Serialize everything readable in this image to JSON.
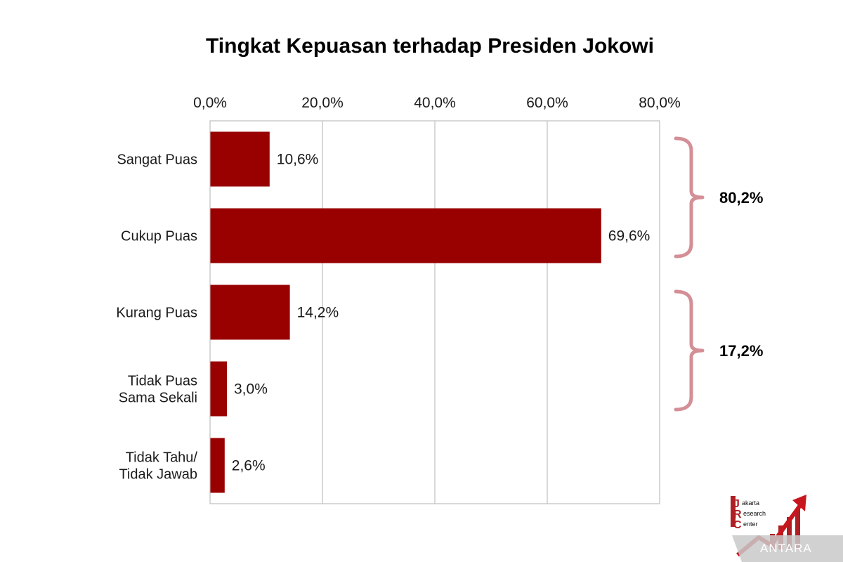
{
  "chart_data": {
    "type": "bar",
    "orientation": "horizontal",
    "title": "Tingkat Kepuasan terhadap Presiden Jokowi",
    "categories": [
      [
        "Sangat Puas"
      ],
      [
        "Cukup Puas"
      ],
      [
        "Kurang Puas"
      ],
      [
        "Tidak Puas",
        "Sama Sekali"
      ],
      [
        "Tidak Tahu/",
        "Tidak Jawab"
      ]
    ],
    "values": [
      10.6,
      69.6,
      14.2,
      3.0,
      2.6
    ],
    "data_labels": [
      "10,6%",
      "69,6%",
      "14,2%",
      "3,0%",
      "2,6%"
    ],
    "x_ticks": [
      "0,0%",
      "20,0%",
      "40,0%",
      "60,0%",
      "80,0%"
    ],
    "xlim": [
      0,
      80
    ],
    "x_axis_position": "top",
    "grid": true,
    "bar_color": "#990000",
    "groups": [
      {
        "label": "80,2%",
        "from_category": 0,
        "to_category": 1
      },
      {
        "label": "17,2%",
        "from_category": 2,
        "to_category": 3
      }
    ],
    "bracket_color": "#d48f96"
  },
  "logo": {
    "letters": [
      "J",
      "R",
      "C"
    ],
    "words": [
      "akarta",
      "esearch",
      "enter"
    ]
  },
  "watermark": "ANTARA"
}
